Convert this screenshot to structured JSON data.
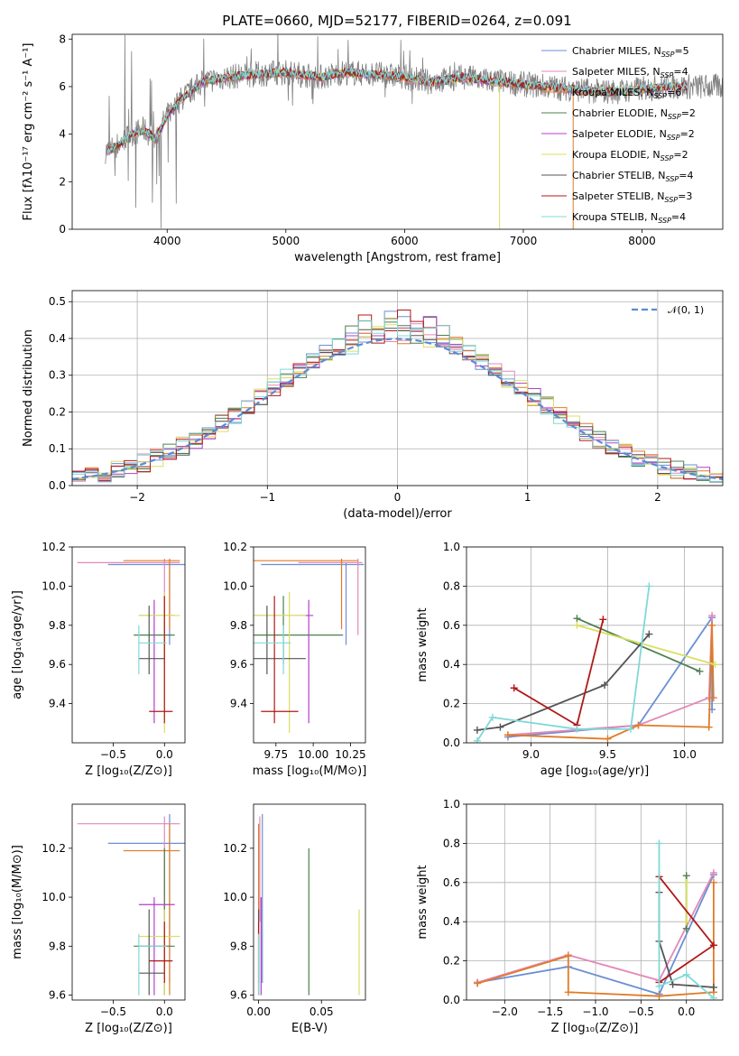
{
  "figure": {
    "title": "PLATE=0660, MJD=52177, FIBERID=0264, z=0.091"
  },
  "chart_data": [
    {
      "id": "spectrum",
      "type": "line",
      "xlabel": "wavelength [Angstrom, rest frame]",
      "ylabel": "Flux [fλ10⁻¹⁷ erg cm⁻² s⁻¹ A⁻¹]",
      "xlim": [
        3200,
        8680
      ],
      "ylim": [
        0,
        8.2
      ],
      "xticks": [
        4000,
        5000,
        6000,
        7000,
        8000
      ],
      "yticks": [
        0,
        2,
        4,
        6,
        8
      ],
      "grid": false,
      "legend_position": "upper right",
      "data_envelope": {
        "x": [
          3500,
          3600,
          3700,
          3800,
          3900,
          4000,
          4100,
          4200,
          4300,
          4500,
          4700,
          5000,
          5300,
          5500,
          5800,
          6000,
          6200,
          6500,
          6800,
          7000,
          7200,
          7400,
          7600,
          7800,
          8000,
          8200,
          8400
        ],
        "y": [
          3.3,
          3.6,
          4.0,
          4.2,
          3.8,
          4.8,
          5.4,
          5.8,
          6.2,
          6.4,
          6.5,
          6.6,
          6.4,
          6.6,
          6.5,
          6.4,
          6.2,
          6.4,
          6.2,
          6.1,
          6.0,
          5.9,
          5.8,
          5.8,
          5.9,
          6.0,
          6.0
        ]
      },
      "series": [
        {
          "name": "Chabrier MILES, N",
          "sub": "SSP",
          "suffix": "=5",
          "color": "#6b8fd6"
        },
        {
          "name": "Salpeter MILES, N",
          "sub": "SSP",
          "suffix": "=4",
          "color": "#e388b8"
        },
        {
          "name": "Kroupa MILES, N",
          "sub": "SSP",
          "suffix": "=6",
          "color": "#e07b27"
        },
        {
          "name": "Chabrier ELODIE, N",
          "sub": "SSP",
          "suffix": "=2",
          "color": "#4c7f4c"
        },
        {
          "name": "Salpeter ELODIE, N",
          "sub": "SSP",
          "suffix": "=2",
          "color": "#b040c8"
        },
        {
          "name": "Kroupa ELODIE, N",
          "sub": "SSP",
          "suffix": "=2",
          "color": "#d8e060"
        },
        {
          "name": "Chabrier STELIB, N",
          "sub": "SSP",
          "suffix": "=4",
          "color": "#555555"
        },
        {
          "name": "Salpeter STELIB, N",
          "sub": "SSP",
          "suffix": "=3",
          "color": "#b01818"
        },
        {
          "name": "Kroupa STELIB, N",
          "sub": "SSP",
          "suffix": "=4",
          "color": "#80d8d8"
        }
      ]
    },
    {
      "id": "residuals",
      "type": "line",
      "xlabel": "(data-model)/error",
      "ylabel": "Normed distribution",
      "xlim": [
        -2.5,
        2.5
      ],
      "ylim": [
        0,
        0.53
      ],
      "xticks": [
        -2,
        -1,
        0,
        1,
        2
      ],
      "yticks": [
        0.0,
        0.1,
        0.2,
        0.3,
        0.4,
        0.5
      ],
      "grid": true,
      "legend_position": "upper right",
      "legend": "𝒩(0, 1)",
      "gaussian": {
        "mean": 0,
        "sigma": 1,
        "color": "#5b8bd5"
      },
      "bin_width": 0.1
    },
    {
      "id": "Z-age",
      "type": "scatter",
      "xlabel": "Z [log₁₀(Z/Z⊙)]",
      "ylabel": "age  [log₁₀(age/yr)]",
      "xlim": [
        -0.9,
        0.2
      ],
      "ylim": [
        9.2,
        10.2
      ],
      "xticks": [
        -0.5,
        0.0
      ],
      "yticks": [
        9.4,
        9.6,
        9.8,
        10.0,
        10.2
      ],
      "grid": false
    },
    {
      "id": "mass-age",
      "type": "scatter",
      "xlabel": "mass [log₁₀(M/M⊙)]",
      "ylabel": "",
      "xlim": [
        9.6,
        10.35
      ],
      "ylim": [
        9.2,
        10.2
      ],
      "xticks": [
        9.75,
        10.0,
        10.25
      ],
      "yticks": [
        9.4,
        9.6,
        9.8,
        10.0,
        10.2
      ],
      "grid": false
    },
    {
      "id": "age-weight",
      "type": "line",
      "xlabel": "age  [log₁₀(age/yr)]",
      "ylabel": "mass weight",
      "xlim": [
        8.58,
        10.25
      ],
      "ylim": [
        0,
        1
      ],
      "xticks": [
        9.0,
        9.5,
        10.0
      ],
      "yticks": [
        0.0,
        0.2,
        0.4,
        0.6,
        0.8,
        1.0
      ],
      "grid": true,
      "series": [
        {
          "color": "#6b8fd6",
          "points": [
            [
              8.85,
              0.03
            ],
            [
              9.7,
              0.09
            ],
            [
              10.18,
              0.64
            ],
            [
              10.18,
              0.17
            ]
          ]
        },
        {
          "color": "#e388b8",
          "points": [
            [
              8.85,
              0.04
            ],
            [
              9.7,
              0.09
            ],
            [
              10.16,
              0.23
            ],
            [
              10.18,
              0.65
            ]
          ]
        },
        {
          "color": "#e07b27",
          "points": [
            [
              8.85,
              0.04
            ],
            [
              9.5,
              0.02
            ],
            [
              9.7,
              0.09
            ],
            [
              10.16,
              0.08
            ],
            [
              10.18,
              0.6
            ],
            [
              10.19,
              0.23
            ]
          ]
        },
        {
          "color": "#4c7f4c",
          "points": [
            [
              9.3,
              0.635
            ],
            [
              10.1,
              0.365
            ]
          ]
        },
        {
          "color": "#d8e060",
          "points": [
            [
              9.3,
              0.6
            ],
            [
              10.2,
              0.4
            ]
          ]
        },
        {
          "color": "#555555",
          "points": [
            [
              8.65,
              0.065
            ],
            [
              8.8,
              0.08
            ],
            [
              9.48,
              0.295
            ],
            [
              9.77,
              0.555
            ]
          ]
        },
        {
          "color": "#b01818",
          "points": [
            [
              8.89,
              0.28
            ],
            [
              9.3,
              0.09
            ],
            [
              9.47,
              0.63
            ]
          ]
        },
        {
          "color": "#80d8d8",
          "points": [
            [
              8.65,
              0.01
            ],
            [
              8.75,
              0.13
            ],
            [
              9.3,
              0.07
            ],
            [
              9.65,
              0.07
            ],
            [
              9.77,
              0.8
            ]
          ]
        }
      ]
    },
    {
      "id": "Z-mass",
      "type": "scatter",
      "xlabel": "Z [log₁₀(Z/Z⊙)]",
      "ylabel": "mass [log₁₀(M/M⊙)]",
      "xlim": [
        -0.9,
        0.2
      ],
      "ylim": [
        9.58,
        10.38
      ],
      "xticks": [
        -0.5,
        0.0
      ],
      "yticks": [
        9.6,
        9.8,
        10.0,
        10.2
      ],
      "grid": false
    },
    {
      "id": "ebv-mass",
      "type": "scatter",
      "xlabel": "E(B-V)",
      "ylabel": "",
      "xlim": [
        -0.004,
        0.085
      ],
      "ylim": [
        9.58,
        10.38
      ],
      "xticks": [
        0.0,
        0.05
      ],
      "yticks": [
        9.6,
        9.8,
        10.0,
        10.2
      ],
      "grid": false
    },
    {
      "id": "Z-weight",
      "type": "line",
      "xlabel": "Z [log₁₀(Z/Z⊙)]",
      "ylabel": "mass weight",
      "xlim": [
        -2.42,
        0.4
      ],
      "ylim": [
        0,
        1
      ],
      "xticks": [
        -2.0,
        -1.5,
        -1.0,
        -0.5,
        0.0
      ],
      "yticks": [
        0.0,
        0.2,
        0.4,
        0.6,
        0.8,
        1.0
      ],
      "grid": true,
      "series": [
        {
          "color": "#6b8fd6",
          "points": [
            [
              -2.3,
              0.09
            ],
            [
              -1.3,
              0.17
            ],
            [
              -0.3,
              0.03
            ],
            [
              0.3,
              0.64
            ]
          ]
        },
        {
          "color": "#e388b8",
          "points": [
            [
              -2.3,
              0.09
            ],
            [
              -1.3,
              0.23
            ],
            [
              -0.3,
              0.1
            ],
            [
              0.3,
              0.65
            ]
          ]
        },
        {
          "color": "#e07b27",
          "points": [
            [
              -2.3,
              0.085
            ],
            [
              -1.3,
              0.225
            ],
            [
              -1.3,
              0.04
            ],
            [
              -0.3,
              0.02
            ],
            [
              0.3,
              0.04
            ],
            [
              0.3,
              0.6
            ]
          ]
        },
        {
          "color": "#4c7f4c",
          "points": [
            [
              0.0,
              0.635
            ],
            [
              0.0,
              0.365
            ]
          ]
        },
        {
          "color": "#d8e060",
          "points": [
            [
              0.0,
              0.6
            ],
            [
              0.0,
              0.4
            ]
          ]
        },
        {
          "color": "#555555",
          "points": [
            [
              -0.3,
              0.55
            ],
            [
              -0.3,
              0.3
            ],
            [
              -0.15,
              0.08
            ],
            [
              0.3,
              0.065
            ]
          ]
        },
        {
          "color": "#b01818",
          "points": [
            [
              -0.3,
              0.09
            ],
            [
              0.3,
              0.28
            ],
            [
              -0.3,
              0.63
            ]
          ]
        },
        {
          "color": "#80d8d8",
          "points": [
            [
              -0.3,
              0.8
            ],
            [
              -0.3,
              0.07
            ],
            [
              0.0,
              0.13
            ],
            [
              0.3,
              0.01
            ]
          ]
        }
      ]
    },
    {
      "id": "errorbars",
      "type": "scatter",
      "note_fields": [
        "color",
        "Z",
        "Zerr",
        "age",
        "ageerr",
        "mass",
        "masserr",
        "ebv"
      ],
      "points": [
        {
          "color": "#6b8fd6",
          "Z": 0.05,
          "Zlo": -0.55,
          "Zhi": 0.2,
          "age": 10.11,
          "agelo": 9.7,
          "agehi": 10.12,
          "mass": 10.22,
          "masslo": 9.65,
          "masshi": 10.34,
          "ebv": 0.003
        },
        {
          "color": "#e388b8",
          "Z": 0.0,
          "Zlo": -0.85,
          "Zhi": 0.15,
          "age": 10.12,
          "agelo": 9.75,
          "agehi": 10.14,
          "mass": 10.3,
          "masslo": 9.9,
          "masshi": 10.33,
          "ebv": 0.001
        },
        {
          "color": "#e07b27",
          "Z": 0.05,
          "Zlo": -0.4,
          "Zhi": 0.15,
          "age": 10.13,
          "agelo": 9.78,
          "agehi": 10.14,
          "mass": 10.19,
          "masslo": 9.6,
          "masshi": 10.3,
          "ebv": 0.0
        },
        {
          "color": "#4c7f4c",
          "Z": 0.0,
          "Zlo": -0.3,
          "Zhi": 0.1,
          "age": 9.75,
          "agelo": 9.6,
          "agehi": 9.95,
          "mass": 9.8,
          "masslo": 9.6,
          "masshi": 10.2,
          "ebv": 0.04
        },
        {
          "color": "#b040c8",
          "Z": -0.1,
          "Zlo": -0.25,
          "Zhi": 0.1,
          "age": 9.85,
          "agelo": 9.3,
          "agehi": 9.93,
          "mass": 9.97,
          "masslo": 9.6,
          "masshi": 10.0,
          "ebv": 0.002
        },
        {
          "color": "#d8e060",
          "Z": 0.0,
          "Zlo": -0.25,
          "Zhi": 0.15,
          "age": 9.85,
          "agelo": 9.25,
          "agehi": 9.97,
          "mass": 9.84,
          "masslo": 9.6,
          "masshi": 9.95,
          "ebv": 0.08
        },
        {
          "color": "#555555",
          "Z": -0.15,
          "Zlo": -0.25,
          "Zhi": 0.0,
          "age": 9.63,
          "agelo": 9.55,
          "agehi": 9.9,
          "mass": 9.69,
          "masslo": 9.6,
          "masshi": 9.95,
          "ebv": 0.0
        },
        {
          "color": "#b01818",
          "Z": 0.0,
          "Zlo": -0.15,
          "Zhi": 0.08,
          "age": 9.36,
          "agelo": 9.3,
          "agehi": 9.95,
          "mass": 9.74,
          "masslo": 9.65,
          "masshi": 9.9,
          "ebv": 0.0
        },
        {
          "color": "#80d8d8",
          "Z": -0.25,
          "Zlo": -0.25,
          "Zhi": 0.02,
          "age": 9.71,
          "agelo": 9.55,
          "agehi": 9.8,
          "mass": 9.8,
          "masslo": 9.6,
          "masshi": 9.85,
          "ebv": 0.0
        }
      ]
    }
  ]
}
